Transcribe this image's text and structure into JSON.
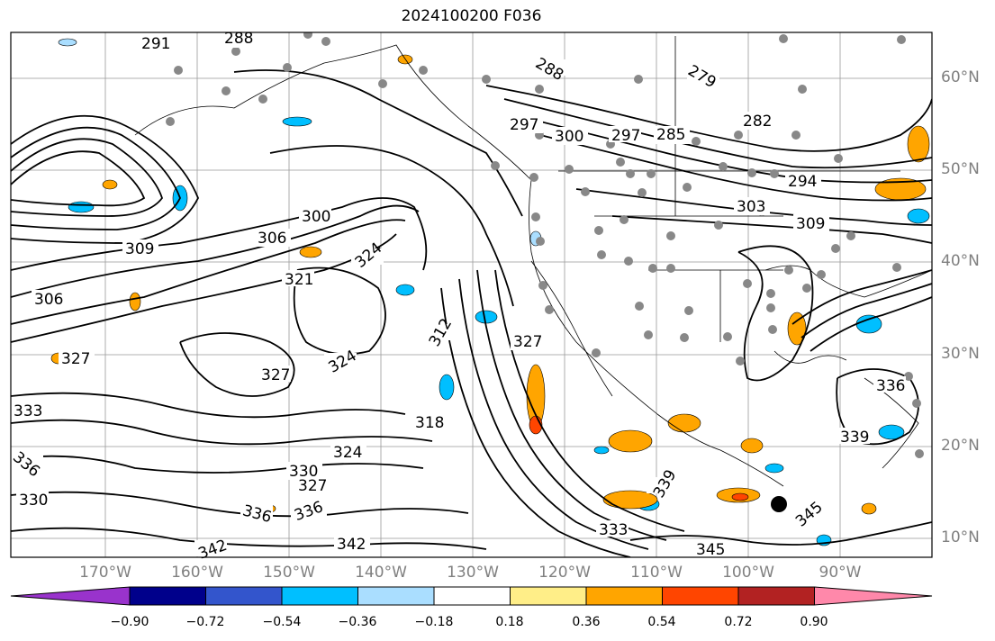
{
  "title": "2024100200 F036",
  "latitude_labels": [
    "60°N",
    "50°N",
    "40°N",
    "30°N",
    "20°N",
    "10°N"
  ],
  "longitude_labels": [
    "170°W",
    "160°W",
    "150°W",
    "140°W",
    "130°W",
    "120°W",
    "110°W",
    "100°W",
    "90°W"
  ],
  "contour_labels": [
    "291",
    "288",
    "288",
    "279",
    "282",
    "285",
    "297",
    "297",
    "300",
    "294",
    "303",
    "309",
    "306",
    "309",
    "306",
    "300",
    "324",
    "321",
    "312",
    "327",
    "327",
    "324",
    "327",
    "318",
    "324",
    "330",
    "327",
    "336",
    "336",
    "342",
    "342",
    "345",
    "345",
    "333",
    "339",
    "339",
    "336",
    "333",
    "336",
    "330"
  ],
  "colorbar": {
    "tick_labels": [
      "−0.90",
      "−0.72",
      "−0.54",
      "−0.36",
      "−0.18",
      "0.18",
      "0.36",
      "0.54",
      "0.72",
      "0.90"
    ],
    "colors": [
      "#9933cc",
      "#00008b",
      "#3355cc",
      "#00bfff",
      "#aadeff",
      "#ffffff",
      "#ffee88",
      "#ffa500",
      "#ff4500",
      "#b22222",
      "#ff88aa"
    ]
  }
}
